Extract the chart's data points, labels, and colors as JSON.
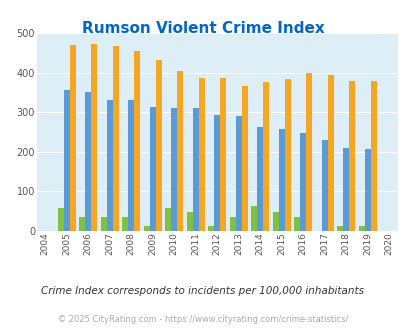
{
  "title": "Rumson Violent Crime Index",
  "years": [
    2004,
    2005,
    2006,
    2007,
    2008,
    2009,
    2010,
    2011,
    2012,
    2013,
    2014,
    2015,
    2016,
    2017,
    2018,
    2019,
    2020
  ],
  "rumson": [
    0,
    58,
    35,
    35,
    35,
    12,
    57,
    47,
    12,
    35,
    62,
    47,
    35,
    0,
    12,
    12,
    0
  ],
  "new_jersey": [
    0,
    355,
    350,
    330,
    330,
    312,
    310,
    310,
    294,
    290,
    262,
    257,
    247,
    231,
    210,
    207,
    0
  ],
  "national": [
    0,
    469,
    473,
    467,
    455,
    432,
    405,
    387,
    387,
    367,
    377,
    383,
    398,
    394,
    379,
    379,
    0
  ],
  "rumson_color": "#7dc242",
  "nj_color": "#5b9bd5",
  "national_color": "#f5a623",
  "bg_color": "#ddeef6",
  "title_color": "#0066cc",
  "subtitle": "Crime Index corresponds to incidents per 100,000 inhabitants",
  "footer": "© 2025 CityRating.com - https://www.cityrating.com/crime-statistics/",
  "ylim": [
    0,
    500
  ],
  "yticks": [
    0,
    100,
    200,
    300,
    400,
    500
  ],
  "bar_width": 0.28
}
